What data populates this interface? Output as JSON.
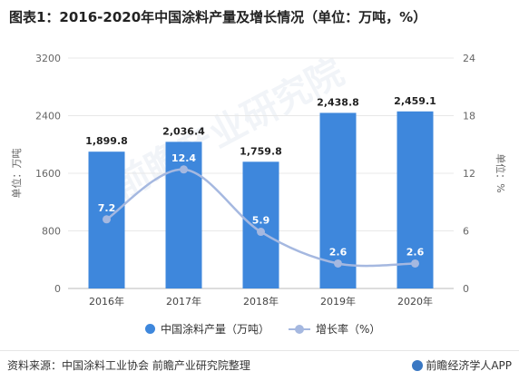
{
  "title": "图表1：2016-2020年中国涂料产量及增长情况（单位：万吨，%）",
  "watermark": "前瞻产业研究院",
  "footer": {
    "source": "资料来源：中国涂料工业协会 前瞻产业研究院整理",
    "brand": "前瞻经济学人APP"
  },
  "colors": {
    "bar": "#3e87dc",
    "line": "#a5b8e0",
    "grid": "#e8e8e8"
  },
  "chart_data": {
    "type": "bar",
    "categories": [
      "2016年",
      "2017年",
      "2018年",
      "2019年",
      "2020年"
    ],
    "series": [
      {
        "name": "中国涂料产量（万吨）",
        "type": "bar",
        "axis": "left",
        "values": [
          1899.8,
          2036.4,
          1759.8,
          2438.8,
          2459.1
        ],
        "labels": [
          "1,899.8",
          "2,036.4",
          "1,759.8",
          "2,438.8",
          "2,459.1"
        ]
      },
      {
        "name": "增长率（%）",
        "type": "line",
        "axis": "right",
        "values": [
          7.2,
          12.4,
          5.9,
          2.6,
          2.6
        ],
        "labels": [
          "7.2",
          "12.4",
          "5.9",
          "2.6",
          "2.6"
        ]
      }
    ],
    "ylabel": "单位：万吨",
    "y2label": "单位：%",
    "ylim": [
      0,
      3200
    ],
    "y2lim": [
      0,
      24
    ],
    "yticks": [
      "0",
      "800",
      "1600",
      "2400",
      "3200"
    ],
    "y2ticks": [
      "0",
      "6",
      "12",
      "18",
      "24"
    ],
    "legend": "bottom-center",
    "grid": true
  }
}
